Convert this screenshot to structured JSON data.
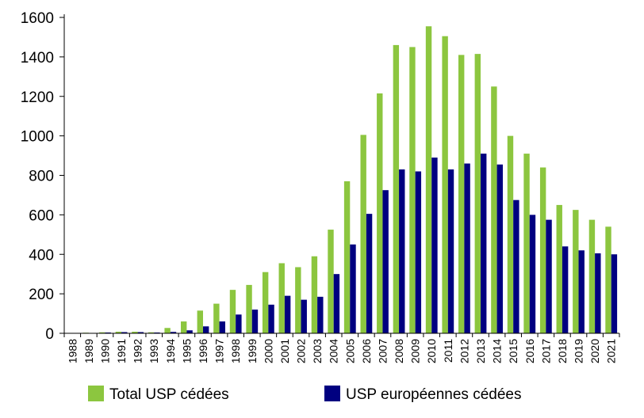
{
  "chart_data": {
    "type": "bar",
    "categories": [
      "1988",
      "1989",
      "1990",
      "1991",
      "1992",
      "1993",
      "1994",
      "1995",
      "1996",
      "1997",
      "1998",
      "1999",
      "2000",
      "2001",
      "2002",
      "2003",
      "2004",
      "2005",
      "2006",
      "2007",
      "2008",
      "2009",
      "2010",
      "2011",
      "2012",
      "2013",
      "2014",
      "2015",
      "2016",
      "2017",
      "2018",
      "2019",
      "2020",
      "2021"
    ],
    "series": [
      {
        "name": "Total USP cédées",
        "color": "#8cc63f",
        "values": [
          2,
          3,
          5,
          8,
          8,
          5,
          27,
          60,
          115,
          150,
          220,
          245,
          310,
          355,
          335,
          390,
          525,
          770,
          1005,
          1215,
          1460,
          1450,
          1555,
          1505,
          1410,
          1415,
          1250,
          1000,
          910,
          840,
          650,
          625,
          575,
          540
        ]
      },
      {
        "name": "USP européennes cédées",
        "color": "#000080",
        "values": [
          1,
          2,
          4,
          6,
          6,
          4,
          7,
          15,
          35,
          60,
          95,
          120,
          145,
          190,
          170,
          185,
          300,
          450,
          605,
          725,
          830,
          820,
          890,
          830,
          860,
          910,
          855,
          675,
          600,
          575,
          440,
          420,
          405,
          400
        ]
      }
    ],
    "ylim": [
      0,
      1600
    ],
    "yticks": [
      "0",
      "200",
      "400",
      "600",
      "800",
      "1000",
      "1200",
      "1400",
      "1600"
    ],
    "title": "",
    "xlabel": "",
    "ylabel": "",
    "grid": false,
    "legend_position": "bottom"
  }
}
